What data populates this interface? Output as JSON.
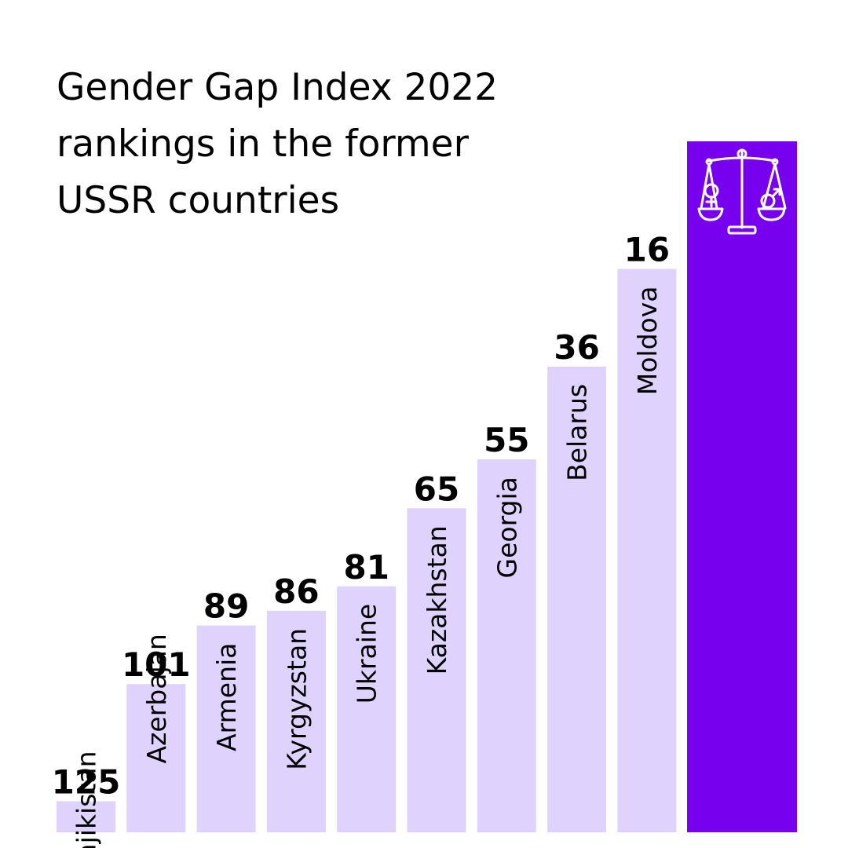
{
  "chart_data": {
    "type": "bar",
    "title_lines": [
      "Gender Gap Index 2022",
      "rankings in the former",
      "USSR countries"
    ],
    "categories": [
      "Tajikistan",
      "Azerbajan",
      "Armenia",
      "Kyrgyzstan",
      "Ukraine",
      "Kazakhstan",
      "Georgia",
      "Belarus",
      "Moldova"
    ],
    "values": [
      125,
      101,
      89,
      86,
      81,
      65,
      55,
      36,
      16
    ],
    "value_labels": [
      "125",
      "101",
      "89",
      "86",
      "81",
      "65",
      "55",
      "36",
      "16"
    ],
    "xlabel": "",
    "ylabel": "",
    "y_axis": "rank (lower rank drawn as taller bar)",
    "grid": false,
    "legend": "none",
    "decorative_bar_icon": "scales-of-justice-gender-icon"
  },
  "colors": {
    "bar": "#dfd2fc",
    "accent_bar": "#7700ee",
    "icon": "#ffffff",
    "text": "#000000"
  }
}
